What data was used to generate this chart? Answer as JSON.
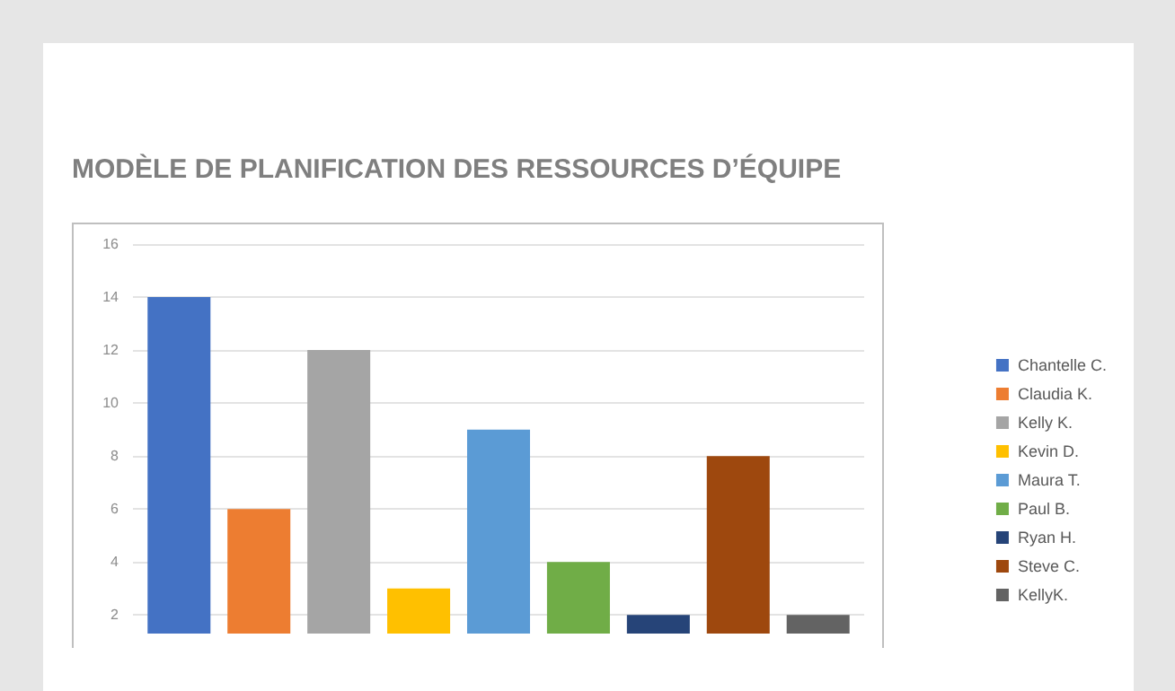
{
  "chart_data": {
    "type": "bar",
    "title": "MODÈLE DE PLANIFICATION DES RESSOURCES D’ÉQUIPE",
    "categories": [
      null
    ],
    "series": [
      {
        "name": "Chantelle C.",
        "color": "#4472c4",
        "values": [
          14
        ]
      },
      {
        "name": "Claudia K.",
        "color": "#ed7d31",
        "values": [
          6
        ]
      },
      {
        "name": "Kelly K.",
        "color": "#a5a5a5",
        "values": [
          12
        ]
      },
      {
        "name": "Kevin D.",
        "color": "#ffc000",
        "values": [
          3
        ]
      },
      {
        "name": "Maura T.",
        "color": "#5b9bd5",
        "values": [
          9
        ]
      },
      {
        "name": "Paul B.",
        "color": "#70ad47",
        "values": [
          4
        ]
      },
      {
        "name": "Ryan H.",
        "color": "#264478",
        "values": [
          2
        ]
      },
      {
        "name": "Steve C.",
        "color": "#9e480e",
        "values": [
          8
        ]
      },
      {
        "name": "KellyK.",
        "color": "#636363",
        "values": [
          2
        ]
      }
    ],
    "ylim": [
      1.3,
      16
    ],
    "yticks": [
      2,
      4,
      6,
      8,
      10,
      12,
      14,
      16
    ],
    "grid": "y",
    "legend": "right"
  }
}
